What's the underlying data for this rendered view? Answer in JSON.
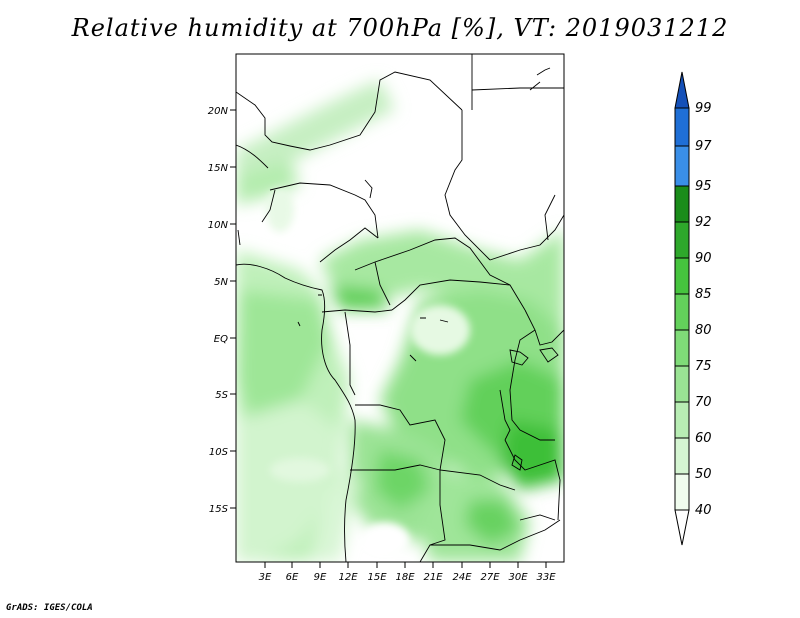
{
  "title": "Relative humidity at 700hPa [%], VT: 2019031212",
  "credit": "GrADS: IGES/COLA",
  "map": {
    "lat_labels": [
      "20N",
      "15N",
      "10N",
      "5N",
      "EQ",
      "5S",
      "10S",
      "15S"
    ],
    "lon_labels": [
      "3E",
      "6E",
      "9E",
      "12E",
      "15E",
      "18E",
      "21E",
      "24E",
      "27E",
      "30E",
      "33E"
    ]
  },
  "colorbar": {
    "levels": [
      "40",
      "50",
      "60",
      "70",
      "75",
      "80",
      "85",
      "90",
      "92",
      "95",
      "97",
      "99"
    ],
    "colors": [
      "#f0fcee",
      "#d5f5d2",
      "#b8edb4",
      "#9ae394",
      "#7fdb78",
      "#63d15b",
      "#46c43e",
      "#2ea82b",
      "#1a8c1a",
      "#3a8fe8",
      "#1f6fd6",
      "#1450b8"
    ]
  }
}
